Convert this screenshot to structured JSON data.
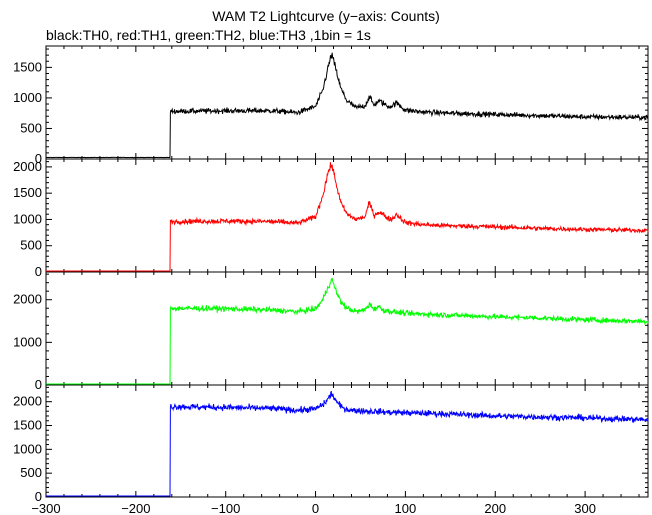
{
  "title": "WAM T2 Lightcurve (y−axis: Counts)",
  "subtitle": "black:TH0, red:TH1, green:TH2, blue:TH3 ,1bin = 1s",
  "chart_data": {
    "type": "line",
    "xlim": [
      -300,
      370
    ],
    "xticks": [
      -300,
      -200,
      -100,
      0,
      100,
      200,
      300
    ],
    "xticklabels": [
      "−300",
      "−200",
      "−100",
      "0",
      "100",
      "200",
      "300"
    ],
    "grid": false,
    "panels": [
      {
        "name": "TH0",
        "color": "#000000",
        "ylim": [
          0,
          1850
        ],
        "yticks": [
          0,
          500,
          1000,
          1500
        ],
        "yticklabels": [
          "0",
          "500",
          "1000",
          "1500"
        ],
        "x": [
          -300,
          -162,
          -162,
          -100,
          -50,
          -20,
          0,
          8,
          14,
          18,
          22,
          28,
          35,
          45,
          55,
          60,
          65,
          70,
          75,
          80,
          85,
          90,
          100,
          120,
          150,
          200,
          250,
          300,
          370
        ],
        "y": [
          25,
          25,
          780,
          790,
          790,
          760,
          860,
          1120,
          1500,
          1720,
          1500,
          1160,
          950,
          840,
          870,
          1020,
          880,
          950,
          920,
          860,
          870,
          920,
          800,
          770,
          750,
          730,
          710,
          690,
          680
        ]
      },
      {
        "name": "TH1",
        "color": "#ff0000",
        "ylim": [
          0,
          2150
        ],
        "yticks": [
          0,
          500,
          1000,
          1500,
          2000
        ],
        "yticklabels": [
          "0",
          "500",
          "1000",
          "1500",
          "2000"
        ],
        "x": [
          -300,
          -162,
          -162,
          -100,
          -50,
          -20,
          0,
          8,
          14,
          18,
          22,
          28,
          35,
          45,
          55,
          60,
          65,
          70,
          75,
          80,
          85,
          90,
          100,
          120,
          150,
          200,
          250,
          300,
          370
        ],
        "y": [
          0,
          0,
          960,
          970,
          960,
          930,
          1050,
          1450,
          1900,
          2050,
          1750,
          1320,
          1100,
          1000,
          1050,
          1320,
          1080,
          1140,
          1100,
          1030,
          1000,
          1100,
          940,
          900,
          880,
          860,
          830,
          810,
          790
        ]
      },
      {
        "name": "TH2",
        "color": "#00ff00",
        "ylim": [
          0,
          2650
        ],
        "yticks": [
          0,
          1000,
          2000
        ],
        "yticklabels": [
          "0",
          "1000",
          "2000"
        ],
        "x": [
          -300,
          -162,
          -162,
          -100,
          -50,
          -20,
          0,
          8,
          14,
          18,
          22,
          28,
          35,
          45,
          55,
          60,
          65,
          70,
          75,
          85,
          100,
          150,
          200,
          250,
          300,
          370
        ],
        "y": [
          10,
          10,
          1800,
          1790,
          1760,
          1720,
          1780,
          2000,
          2300,
          2480,
          2250,
          1950,
          1800,
          1720,
          1760,
          1900,
          1780,
          1840,
          1760,
          1720,
          1680,
          1640,
          1600,
          1570,
          1530,
          1490
        ]
      },
      {
        "name": "TH3",
        "color": "#0000ff",
        "ylim": [
          0,
          2350
        ],
        "yticks": [
          0,
          500,
          1000,
          1500,
          2000
        ],
        "yticklabels": [
          "0",
          "500",
          "1000",
          "1500",
          "2000"
        ],
        "x": [
          -300,
          -162,
          -162,
          -100,
          -50,
          -20,
          0,
          10,
          18,
          24,
          30,
          40,
          60,
          80,
          100,
          150,
          200,
          250,
          300,
          370
        ],
        "y": [
          0,
          0,
          1900,
          1880,
          1860,
          1820,
          1850,
          1960,
          2170,
          1980,
          1870,
          1820,
          1800,
          1780,
          1770,
          1740,
          1700,
          1680,
          1660,
          1620
        ]
      }
    ]
  }
}
